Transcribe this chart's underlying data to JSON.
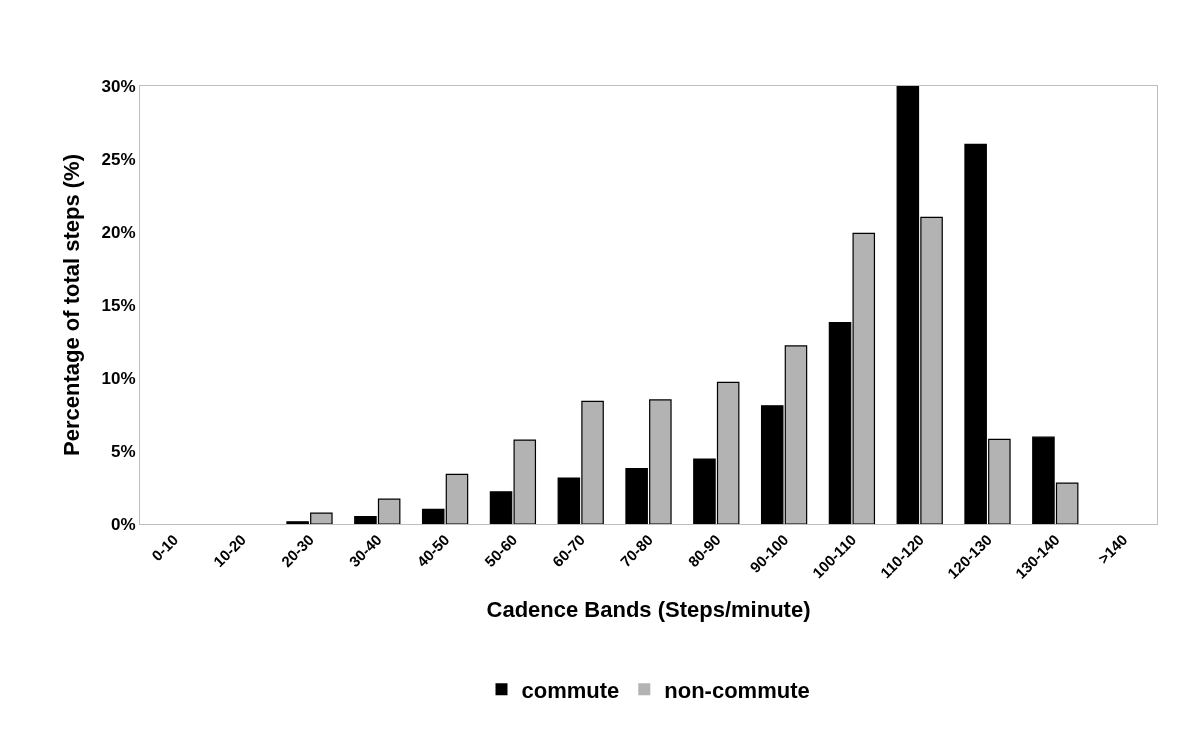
{
  "chart_data": {
    "type": "bar",
    "xlabel": "Cadence Bands (Steps/minute)",
    "ylabel": "Percentage of total steps (%)",
    "categories": [
      "0-10",
      "10-20",
      "20-30",
      "30-40",
      "40-50",
      "50-60",
      "60-70",
      "70-80",
      "80-90",
      "90-100",
      "100-110",
      "110-120",
      "120-130",
      "130-140",
      ">140"
    ],
    "series": [
      {
        "name": "commute",
        "color": "#000000",
        "values": [
          0,
          0,
          0.15,
          0.5,
          1.0,
          2.2,
          3.15,
          3.8,
          4.45,
          8.1,
          13.8,
          30,
          26.0,
          5.95,
          0
        ]
      },
      {
        "name": "non-commute",
        "color": "#b3b3b3",
        "values": [
          0,
          0,
          0.75,
          1.7,
          3.4,
          5.75,
          8.4,
          8.5,
          9.7,
          12.2,
          19.9,
          21.0,
          5.8,
          2.8,
          0
        ]
      }
    ],
    "ylim": [
      0,
      30
    ],
    "yticks": [
      {
        "value": 0,
        "label": "0%"
      },
      {
        "value": 5,
        "label": "5%"
      },
      {
        "value": 10,
        "label": "10%"
      },
      {
        "value": 15,
        "label": "15%"
      },
      {
        "value": 20,
        "label": "20%"
      },
      {
        "value": 25,
        "label": "25%"
      },
      {
        "value": 30,
        "label": "30%"
      }
    ],
    "grid": false,
    "legend": "bottom"
  }
}
